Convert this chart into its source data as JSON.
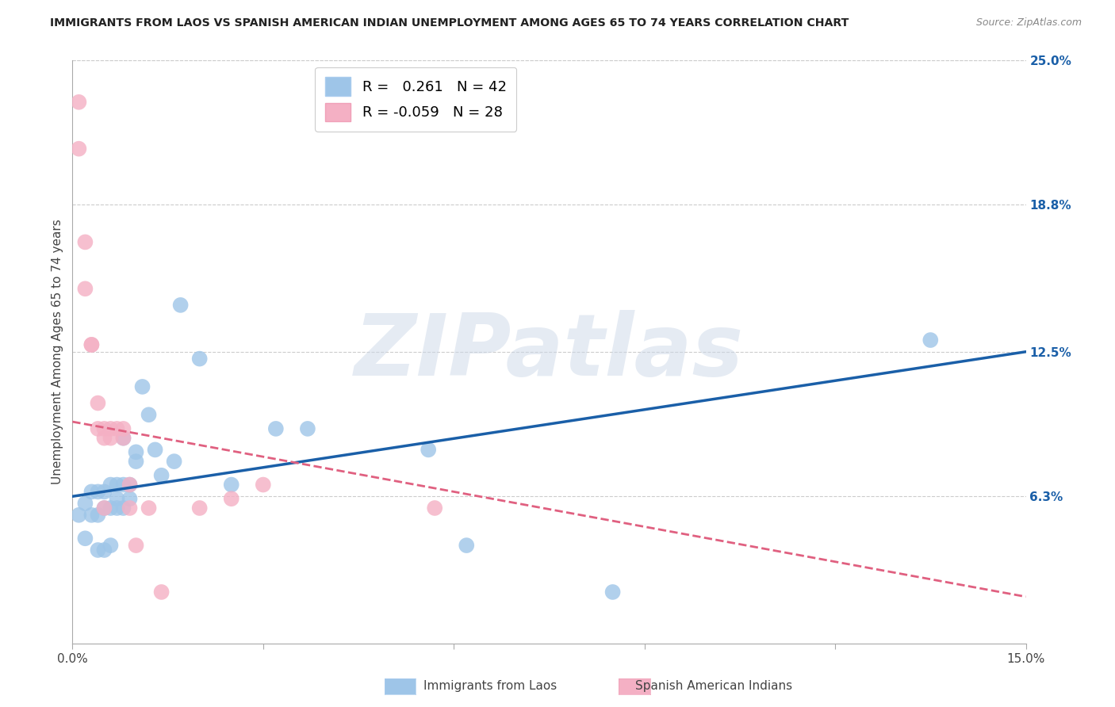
{
  "title": "IMMIGRANTS FROM LAOS VS SPANISH AMERICAN INDIAN UNEMPLOYMENT AMONG AGES 65 TO 74 YEARS CORRELATION CHART",
  "source": "Source: ZipAtlas.com",
  "ylabel": "Unemployment Among Ages 65 to 74 years",
  "xlim": [
    0.0,
    0.15
  ],
  "ylim": [
    0.0,
    0.25
  ],
  "ytick_right_labels": [
    "6.3%",
    "12.5%",
    "18.8%",
    "25.0%"
  ],
  "ytick_right_values": [
    0.063,
    0.125,
    0.188,
    0.25
  ],
  "blue_x": [
    0.001,
    0.002,
    0.002,
    0.003,
    0.003,
    0.004,
    0.004,
    0.004,
    0.005,
    0.005,
    0.005,
    0.006,
    0.006,
    0.006,
    0.007,
    0.007,
    0.007,
    0.008,
    0.008,
    0.008,
    0.009,
    0.009,
    0.01,
    0.01,
    0.011,
    0.012,
    0.013,
    0.014,
    0.016,
    0.017,
    0.02,
    0.025,
    0.032,
    0.037,
    0.056,
    0.062,
    0.085,
    0.135
  ],
  "blue_y": [
    0.055,
    0.045,
    0.06,
    0.055,
    0.065,
    0.04,
    0.055,
    0.065,
    0.04,
    0.058,
    0.065,
    0.042,
    0.058,
    0.068,
    0.058,
    0.062,
    0.068,
    0.058,
    0.068,
    0.088,
    0.062,
    0.068,
    0.078,
    0.082,
    0.11,
    0.098,
    0.083,
    0.072,
    0.078,
    0.145,
    0.122,
    0.068,
    0.092,
    0.092,
    0.083,
    0.042,
    0.022,
    0.13
  ],
  "pink_x": [
    0.001,
    0.001,
    0.002,
    0.002,
    0.003,
    0.003,
    0.004,
    0.004,
    0.005,
    0.005,
    0.005,
    0.006,
    0.006,
    0.007,
    0.008,
    0.008,
    0.009,
    0.009,
    0.01,
    0.012,
    0.014,
    0.02,
    0.025,
    0.03,
    0.057
  ],
  "pink_y": [
    0.232,
    0.212,
    0.172,
    0.152,
    0.128,
    0.128,
    0.103,
    0.092,
    0.088,
    0.092,
    0.058,
    0.092,
    0.088,
    0.092,
    0.088,
    0.092,
    0.068,
    0.058,
    0.042,
    0.058,
    0.022,
    0.058,
    0.062,
    0.068,
    0.058
  ],
  "blue_color": "#9ec5e8",
  "pink_color": "#f4b0c4",
  "blue_line_color": "#1a5fa8",
  "pink_line_color": "#e06080",
  "background_color": "#ffffff",
  "watermark": "ZIPatlas",
  "blue_line_y0": 0.063,
  "blue_line_y1": 0.125,
  "pink_line_y0": 0.095,
  "pink_line_y1": 0.02
}
